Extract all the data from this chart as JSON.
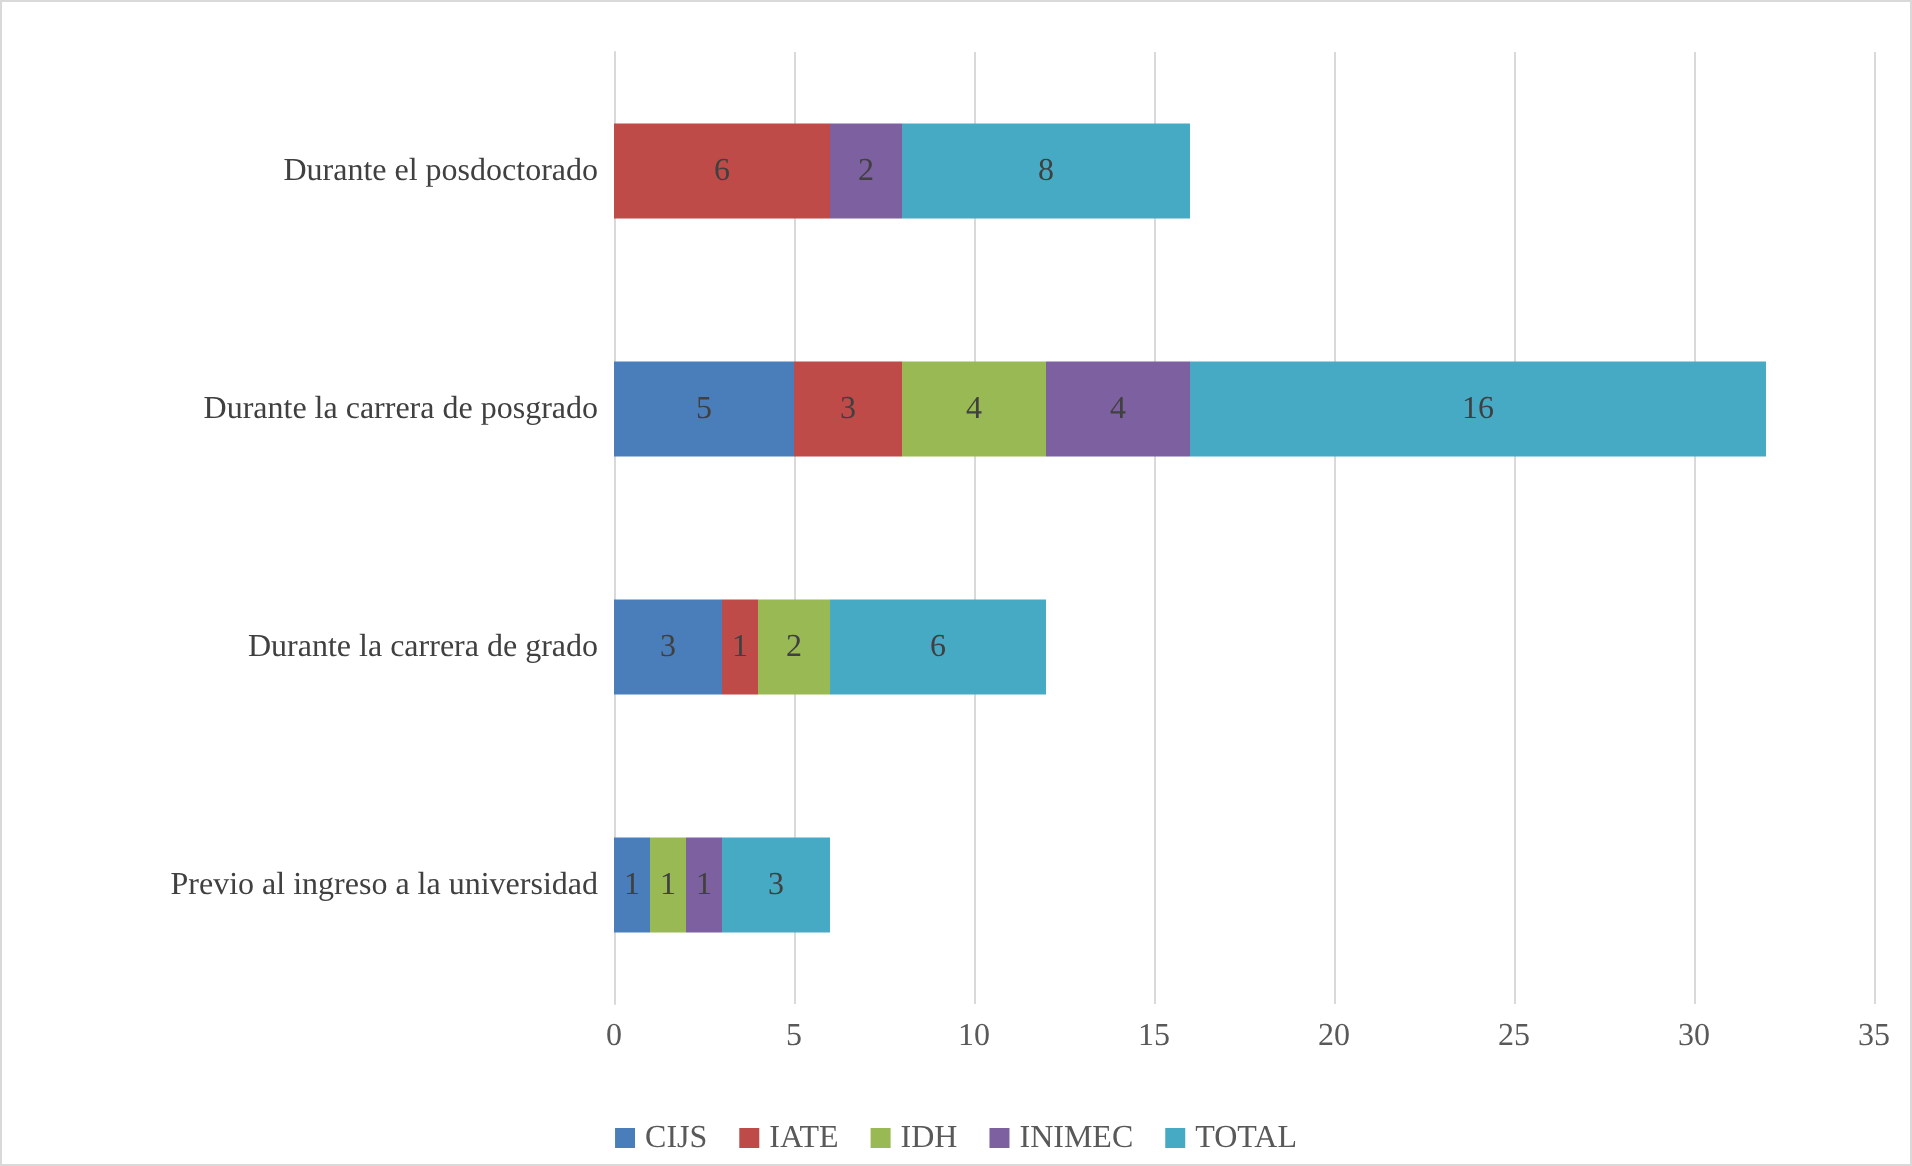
{
  "chart_data": {
    "type": "bar",
    "orientation": "horizontal",
    "stacked": true,
    "data_labels": true,
    "grid": "x",
    "legend": "bottom",
    "categories": [
      "Durante el posdoctorado",
      "Durante la carrera de posgrado",
      "Durante la carrera de grado",
      "Previo al ingreso a la universidad"
    ],
    "series": [
      {
        "name": "CIJS",
        "color": "#4a7ebb",
        "values": [
          null,
          5,
          3,
          1
        ]
      },
      {
        "name": "IATE",
        "color": "#be4b48",
        "values": [
          6,
          3,
          1,
          null
        ]
      },
      {
        "name": "IDH",
        "color": "#98b954",
        "values": [
          null,
          4,
          2,
          1
        ]
      },
      {
        "name": "INIMEC",
        "color": "#7d60a0",
        "values": [
          2,
          4,
          null,
          1
        ]
      },
      {
        "name": "TOTAL",
        "color": "#46aac5",
        "values": [
          8,
          16,
          6,
          3
        ]
      }
    ],
    "xlim": [
      0,
      35
    ],
    "xticks": [
      0,
      5,
      10,
      15,
      20,
      25,
      30,
      35
    ]
  }
}
